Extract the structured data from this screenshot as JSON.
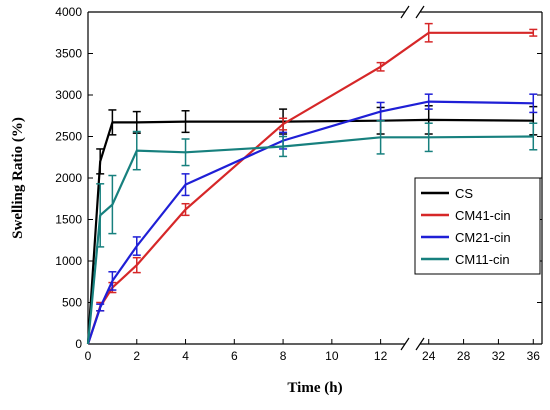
{
  "chart_data": {
    "type": "line",
    "xlabel": "Time (h)",
    "ylabel": "Swelling Ratio (%)",
    "ylim": [
      0,
      4000
    ],
    "x_break": {
      "from": 13,
      "to": 23
    },
    "x_ticks": [
      0,
      2,
      4,
      6,
      8,
      10,
      12,
      24,
      28,
      32,
      36
    ],
    "y_ticks": [
      0,
      500,
      1000,
      1500,
      2000,
      2500,
      3000,
      3500,
      4000
    ],
    "grid": false,
    "legend_position": "center-right",
    "series": [
      {
        "name": "CS",
        "color": "#000000",
        "x": [
          0,
          0.5,
          1,
          2,
          4,
          8,
          12,
          24,
          36
        ],
        "y": [
          0,
          2200,
          2670,
          2670,
          2680,
          2680,
          2690,
          2700,
          2690
        ],
        "err": [
          0,
          150,
          150,
          130,
          130,
          150,
          160,
          170,
          170
        ]
      },
      {
        "name": "CM41-cin",
        "color": "#d62728",
        "x": [
          0,
          0.5,
          1,
          2,
          4,
          8,
          12,
          24,
          36
        ],
        "y": [
          0,
          450,
          680,
          950,
          1620,
          2650,
          3340,
          3750,
          3750
        ],
        "err": [
          0,
          50,
          60,
          90,
          70,
          70,
          50,
          110,
          40
        ]
      },
      {
        "name": "CM21-cin",
        "color": "#1f1fd6",
        "x": [
          0,
          0.5,
          1,
          2,
          4,
          8,
          12,
          24,
          36
        ],
        "y": [
          0,
          440,
          760,
          1180,
          1920,
          2450,
          2800,
          2920,
          2900
        ],
        "err": [
          0,
          40,
          110,
          110,
          130,
          100,
          110,
          90,
          110
        ]
      },
      {
        "name": "CM11-cin",
        "color": "#17807e",
        "x": [
          0,
          0.5,
          1,
          2,
          4,
          8,
          12,
          24,
          36
        ],
        "y": [
          0,
          1550,
          1680,
          2330,
          2310,
          2380,
          2490,
          2490,
          2500
        ],
        "err": [
          0,
          380,
          350,
          230,
          160,
          120,
          200,
          170,
          160
        ]
      }
    ]
  }
}
